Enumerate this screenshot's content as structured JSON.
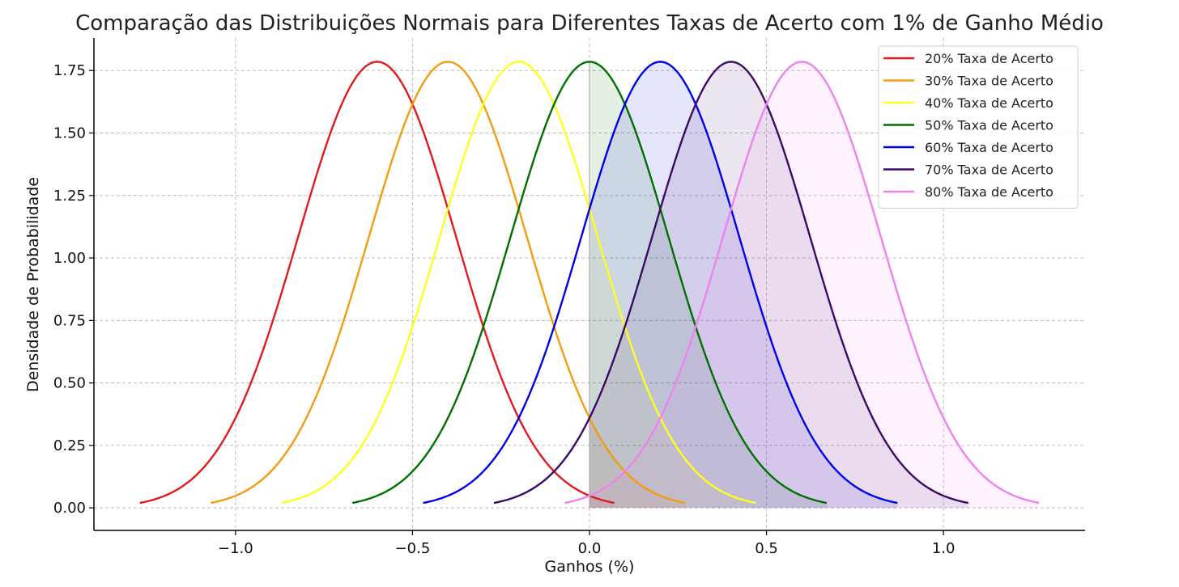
{
  "chart_data": {
    "type": "line",
    "title": "Comparação das Distribuições Normais para Diferentes Taxas de Acerto com 1% de Ganho Médio",
    "xlabel": "Ganhos (%)",
    "ylabel": "Densidade de Probabilidade",
    "xlim": [
      -1.4,
      1.4
    ],
    "ylim": [
      -0.09,
      1.88
    ],
    "x_ticks": [
      -1.0,
      -0.5,
      0.0,
      0.5,
      1.0
    ],
    "x_tick_labels": [
      "−1.0",
      "−0.5",
      "0.0",
      "0.5",
      "1.0"
    ],
    "y_ticks": [
      0.0,
      0.25,
      0.5,
      0.75,
      1.0,
      1.25,
      1.5,
      1.75
    ],
    "y_tick_labels": [
      "0.00",
      "0.25",
      "0.50",
      "0.75",
      "1.00",
      "1.25",
      "1.50",
      "1.75"
    ],
    "grid": true,
    "legend_position": "top-right",
    "peak_density": 1.785,
    "std_dev": 0.2235,
    "x_span_from_mean": 0.67,
    "shade_from_x": 0.0,
    "series": [
      {
        "name": "20% Taxa de Acerto",
        "mean": -0.6,
        "color": "#e31a1c",
        "fill_alpha": 0.08
      },
      {
        "name": "30% Taxa de Acerto",
        "mean": -0.4,
        "color": "#f39c12",
        "fill_alpha": 0.08
      },
      {
        "name": "40% Taxa de Acerto",
        "mean": -0.2,
        "color": "#ffff1f",
        "fill_alpha": 0.08
      },
      {
        "name": "50% Taxa de Acerto",
        "mean": 0.0,
        "color": "#007000",
        "fill_alpha": 0.1
      },
      {
        "name": "60% Taxa de Acerto",
        "mean": 0.2,
        "color": "#0000e6",
        "fill_alpha": 0.1
      },
      {
        "name": "70% Taxa de Acerto",
        "mean": 0.4,
        "color": "#3c0a66",
        "fill_alpha": 0.1
      },
      {
        "name": "80% Taxa de Acerto",
        "mean": 0.6,
        "color": "#ee82ee",
        "fill_alpha": 0.1
      }
    ]
  }
}
